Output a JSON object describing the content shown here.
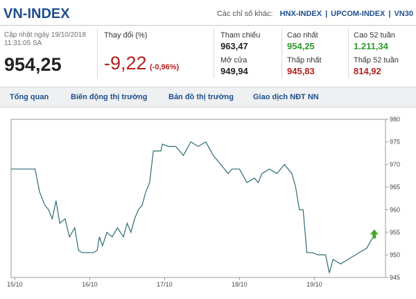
{
  "header": {
    "title": "VN-INDEX",
    "other_label": "Các chỉ số khác:",
    "other_links": [
      "HNX-INDEX",
      "UPCOM-INDEX",
      "VN30"
    ]
  },
  "summary": {
    "update_label": "Cập nhật ngày 19/10/2018",
    "update_time": "11:31:05 SA",
    "current_value": "954,25",
    "change_label": "Thay đổi (%)",
    "change_value": "-9,22",
    "change_percent": "(-0,96%)"
  },
  "stats": {
    "ref_label": "Tham chiếu",
    "ref_value": "963,47",
    "open_label": "Mở cửa",
    "open_value": "949,94",
    "high_label": "Cao nhất",
    "high_value": "954,25",
    "low_label": "Thấp nhất",
    "low_value": "945,83",
    "high52_label": "Cao 52 tuần",
    "high52_value": "1.211,34",
    "low52_label": "Thấp 52 tuần",
    "low52_value": "814,92"
  },
  "colors": {
    "title": "#1f4e8c",
    "up": "#2e9a2e",
    "down": "#b42020",
    "line": "#2a6b73",
    "arrow": "#44aa22"
  },
  "nav": {
    "tabs": [
      "Tổng quan",
      "Biến động thị trường",
      "Bản đồ thị trường",
      "Giao dịch NĐT NN"
    ]
  },
  "chart_data": {
    "type": "line",
    "title": "",
    "xlabel": "",
    "ylabel": "",
    "x_ticks": [
      "15/10",
      "16/10",
      "17/10",
      "18/10",
      "19/10"
    ],
    "y_ticks": [
      945,
      950,
      955,
      960,
      965,
      970,
      975,
      980
    ],
    "ylim": [
      945,
      980
    ],
    "grid": false,
    "series": [
      {
        "x": [
          0,
          0.25,
          0.28,
          0.32,
          0.38,
          0.45,
          0.5,
          0.55,
          0.6,
          0.65,
          0.72,
          0.78,
          0.85,
          0.9,
          0.95,
          1.0,
          1.05,
          1.1,
          1.15,
          1.18,
          1.22,
          1.28,
          1.35,
          1.42,
          1.5,
          1.55,
          1.6,
          1.65,
          1.7,
          1.75,
          1.8,
          1.85,
          1.9,
          1.95,
          2.0,
          2.02,
          2.1,
          2.2,
          2.3,
          2.4,
          2.5,
          2.6,
          2.7,
          2.8,
          2.9,
          2.95,
          3.0,
          3.05,
          3.15,
          3.25,
          3.3,
          3.35,
          3.45,
          3.55,
          3.65,
          3.75,
          3.8,
          3.85,
          3.9,
          3.95,
          4.0,
          4.02,
          4.1,
          4.2,
          4.25,
          4.3,
          4.4,
          4.5,
          4.6,
          4.7,
          4.75,
          4.8,
          4.85
        ],
        "y": [
          969,
          969,
          969,
          969,
          964,
          961,
          960,
          958,
          962,
          957,
          958,
          954,
          956,
          951,
          950.5,
          950.5,
          950.5,
          950.5,
          951,
          954,
          952,
          955,
          954,
          956,
          954,
          957,
          955,
          958,
          960,
          961,
          964,
          966,
          973,
          973,
          973,
          974.5,
          974,
          974,
          972,
          975,
          974,
          975,
          972,
          970,
          968,
          969,
          969,
          969,
          966,
          967,
          966,
          968,
          969,
          968,
          970,
          968,
          965,
          960,
          960,
          950.5,
          950.5,
          950.5,
          950,
          950,
          946,
          949,
          948,
          949,
          950,
          951,
          951.5,
          953,
          954.25
        ]
      }
    ]
  }
}
